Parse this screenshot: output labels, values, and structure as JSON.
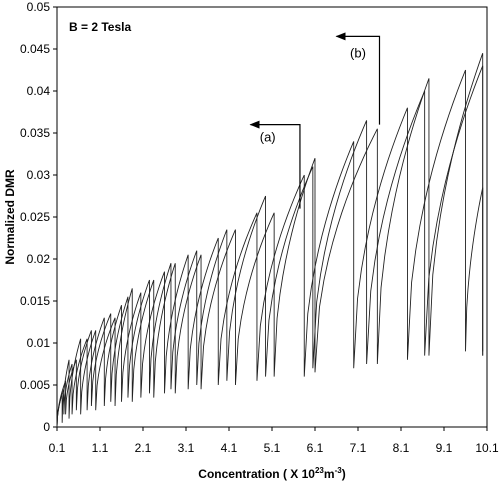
{
  "chart_data": {
    "type": "line",
    "title": "",
    "annotation_label": "B = 2 Tesla",
    "xlabel": {
      "main": "Concentration ( X 10",
      "exp": "23",
      "unit": "m",
      "unit_exp": "-3",
      "close": ")"
    },
    "ylabel": "Normalized DMR",
    "xlim": [
      0.1,
      10.1
    ],
    "ylim": [
      0,
      0.05
    ],
    "x_ticks": [
      "0.1",
      "1.1",
      "2.1",
      "3.1",
      "4.1",
      "5.1",
      "6.1",
      "7.1",
      "8.1",
      "9.1",
      "10.1"
    ],
    "y_ticks": [
      "0",
      "0.005",
      "0.01",
      "0.015",
      "0.02",
      "0.025",
      "0.03",
      "0.035",
      "0.04",
      "0.045",
      "0.05"
    ],
    "grid": false,
    "legend": "none",
    "line_color": "#222222",
    "annotations": [
      {
        "text": "(a)",
        "x": 5.0,
        "y": 0.034,
        "arrow_from": [
          5.75,
          0.026
        ],
        "arrow_to": [
          4.6,
          0.036
        ]
      },
      {
        "text": "(b)",
        "x": 7.1,
        "y": 0.044,
        "arrow_from": [
          7.6,
          0.036
        ],
        "arrow_to": [
          6.6,
          0.0465
        ]
      }
    ],
    "series": [
      {
        "line_style": "solid",
        "sawtooth": [
          {
            "x_start": 0.1,
            "x_peak": 0.26,
            "peak": 0.0045,
            "min": 0.0
          },
          {
            "x_start": 0.26,
            "x_peak": 0.45,
            "peak": 0.0075,
            "min": 0.0015
          },
          {
            "x_start": 0.45,
            "x_peak": 0.8,
            "peak": 0.0105,
            "min": 0.0015
          },
          {
            "x_start": 0.8,
            "x_peak": 1.2,
            "peak": 0.013,
            "min": 0.002
          },
          {
            "x_start": 1.2,
            "x_peak": 1.6,
            "peak": 0.0145,
            "min": 0.0025
          },
          {
            "x_start": 1.6,
            "x_peak": 2.05,
            "peak": 0.016,
            "min": 0.003
          },
          {
            "x_start": 2.05,
            "x_peak": 2.6,
            "peak": 0.0185,
            "min": 0.0035
          },
          {
            "x_start": 2.6,
            "x_peak": 3.15,
            "peak": 0.0205,
            "min": 0.004
          },
          {
            "x_start": 3.15,
            "x_peak": 3.85,
            "peak": 0.0225,
            "min": 0.0045
          },
          {
            "x_start": 3.85,
            "x_peak": 4.75,
            "peak": 0.0255,
            "min": 0.005
          },
          {
            "x_start": 4.75,
            "x_peak": 5.85,
            "peak": 0.03,
            "min": 0.0055
          },
          {
            "x_start": 5.85,
            "x_peak": 7.0,
            "peak": 0.034,
            "min": 0.006
          },
          {
            "x_start": 7.0,
            "x_peak": 8.25,
            "peak": 0.038,
            "min": 0.007
          },
          {
            "x_start": 8.25,
            "x_peak": 9.6,
            "peak": 0.0425,
            "min": 0.008
          },
          {
            "x_start": 9.6,
            "x_peak": 10.0,
            "peak": 0.0285,
            "min": 0.009
          }
        ]
      },
      {
        "line_style": "solid",
        "sawtooth": [
          {
            "x_start": 0.1,
            "x_peak": 0.22,
            "peak": 0.004,
            "min": 0.0
          },
          {
            "x_start": 0.22,
            "x_peak": 0.38,
            "peak": 0.008,
            "min": 0.0005
          },
          {
            "x_start": 0.38,
            "x_peak": 0.65,
            "peak": 0.0105,
            "min": 0.001
          },
          {
            "x_start": 0.65,
            "x_peak": 1.0,
            "peak": 0.0115,
            "min": 0.0015
          },
          {
            "x_start": 1.0,
            "x_peak": 1.45,
            "peak": 0.013,
            "min": 0.002
          },
          {
            "x_start": 1.45,
            "x_peak": 1.85,
            "peak": 0.0165,
            "min": 0.0025
          },
          {
            "x_start": 1.85,
            "x_peak": 2.35,
            "peak": 0.0175,
            "min": 0.003
          },
          {
            "x_start": 2.35,
            "x_peak": 2.85,
            "peak": 0.0195,
            "min": 0.0035
          },
          {
            "x_start": 2.85,
            "x_peak": 3.45,
            "peak": 0.0205,
            "min": 0.004
          },
          {
            "x_start": 3.45,
            "x_peak": 4.25,
            "peak": 0.0235,
            "min": 0.0045
          },
          {
            "x_start": 4.25,
            "x_peak": 5.15,
            "peak": 0.0255,
            "min": 0.005
          },
          {
            "x_start": 5.15,
            "x_peak": 6.1,
            "peak": 0.032,
            "min": 0.006
          },
          {
            "x_start": 6.1,
            "x_peak": 7.55,
            "peak": 0.0355,
            "min": 0.0065
          },
          {
            "x_start": 7.55,
            "x_peak": 8.75,
            "peak": 0.0415,
            "min": 0.0075
          },
          {
            "x_start": 8.75,
            "x_peak": 10.0,
            "peak": 0.0445,
            "min": 0.0085
          }
        ]
      },
      {
        "line_style": "solid",
        "sawtooth": [
          {
            "x_start": 0.1,
            "x_peak": 0.3,
            "peak": 0.0055,
            "min": 0.0
          },
          {
            "x_start": 0.3,
            "x_peak": 0.55,
            "peak": 0.008,
            "min": 0.0015
          },
          {
            "x_start": 0.55,
            "x_peak": 0.9,
            "peak": 0.0115,
            "min": 0.002
          },
          {
            "x_start": 0.9,
            "x_peak": 1.35,
            "peak": 0.0135,
            "min": 0.0025
          },
          {
            "x_start": 1.35,
            "x_peak": 1.75,
            "peak": 0.0155,
            "min": 0.003
          },
          {
            "x_start": 1.75,
            "x_peak": 2.25,
            "peak": 0.0175,
            "min": 0.0035
          },
          {
            "x_start": 2.25,
            "x_peak": 2.75,
            "peak": 0.0195,
            "min": 0.004
          },
          {
            "x_start": 2.75,
            "x_peak": 3.35,
            "peak": 0.021,
            "min": 0.0045
          },
          {
            "x_start": 3.35,
            "x_peak": 4.05,
            "peak": 0.0235,
            "min": 0.005
          },
          {
            "x_start": 4.05,
            "x_peak": 4.95,
            "peak": 0.0275,
            "min": 0.0055
          },
          {
            "x_start": 4.95,
            "x_peak": 6.05,
            "peak": 0.031,
            "min": 0.006
          },
          {
            "x_start": 6.05,
            "x_peak": 7.3,
            "peak": 0.0365,
            "min": 0.007
          },
          {
            "x_start": 7.3,
            "x_peak": 8.65,
            "peak": 0.04,
            "min": 0.0075
          },
          {
            "x_start": 8.65,
            "x_peak": 10.0,
            "peak": 0.043,
            "min": 0.0085
          }
        ]
      }
    ]
  }
}
